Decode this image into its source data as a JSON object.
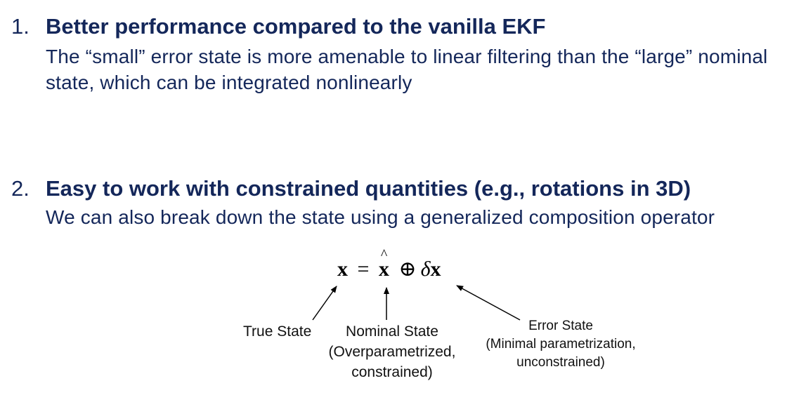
{
  "points": [
    {
      "number": "1.",
      "heading": "Better performance compared to the vanilla EKF",
      "text": "The “small” error state is more amenable to linear filtering than the “large” nominal state, which can be integrated nonlinearly"
    },
    {
      "number": "2.",
      "heading": "Easy to work with constrained quantities (e.g., rotations in 3D)",
      "text": "We can also break down the state using a generalized composition operator"
    }
  ],
  "equation": {
    "lhs": "x",
    "equals": "=",
    "nominal": "x",
    "operator": "⊕",
    "delta": "δ",
    "error": "x"
  },
  "labels": {
    "true_state": "True State",
    "nominal_state": [
      "Nominal State",
      "(Overparametrized,",
      "constrained)"
    ],
    "error_state": [
      "Error State",
      "(Minimal parametrization,",
      "unconstrained)"
    ]
  }
}
